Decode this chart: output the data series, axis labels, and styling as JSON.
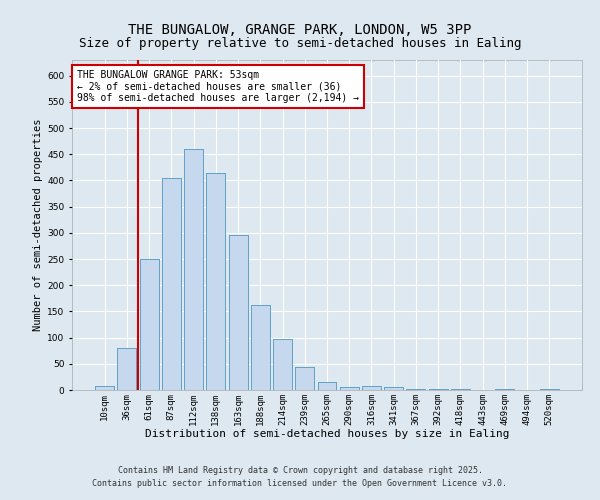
{
  "title": "THE BUNGALOW, GRANGE PARK, LONDON, W5 3PP",
  "subtitle": "Size of property relative to semi-detached houses in Ealing",
  "xlabel": "Distribution of semi-detached houses by size in Ealing",
  "ylabel": "Number of semi-detached properties",
  "categories": [
    "10sqm",
    "36sqm",
    "61sqm",
    "87sqm",
    "112sqm",
    "138sqm",
    "163sqm",
    "188sqm",
    "214sqm",
    "239sqm",
    "265sqm",
    "290sqm",
    "316sqm",
    "341sqm",
    "367sqm",
    "392sqm",
    "418sqm",
    "443sqm",
    "469sqm",
    "494sqm",
    "520sqm"
  ],
  "values": [
    8,
    80,
    250,
    405,
    460,
    415,
    295,
    162,
    97,
    43,
    15,
    6,
    8,
    5,
    2,
    1,
    2,
    0,
    1,
    0,
    2
  ],
  "bar_color": "#c5d8ed",
  "bar_edge_color": "#5a9ec4",
  "annotation_box_text": "THE BUNGALOW GRANGE PARK: 53sqm\n← 2% of semi-detached houses are smaller (36)\n98% of semi-detached houses are larger (2,194) →",
  "annotation_box_color": "#ffffff",
  "annotation_box_edge_color": "#cc0000",
  "vline_x": 1.5,
  "vline_color": "#cc0000",
  "ylim_max": 630,
  "yticks": [
    0,
    50,
    100,
    150,
    200,
    250,
    300,
    350,
    400,
    450,
    500,
    550,
    600
  ],
  "fig_bg_color": "#dde8f0",
  "axes_bg_color": "#dde8f0",
  "grid_color": "#ffffff",
  "footer_line1": "Contains HM Land Registry data © Crown copyright and database right 2025.",
  "footer_line2": "Contains public sector information licensed under the Open Government Licence v3.0.",
  "title_fontsize": 10,
  "subtitle_fontsize": 9,
  "xlabel_fontsize": 8,
  "ylabel_fontsize": 7.5,
  "tick_fontsize": 6.5,
  "annotation_fontsize": 7,
  "footer_fontsize": 6
}
